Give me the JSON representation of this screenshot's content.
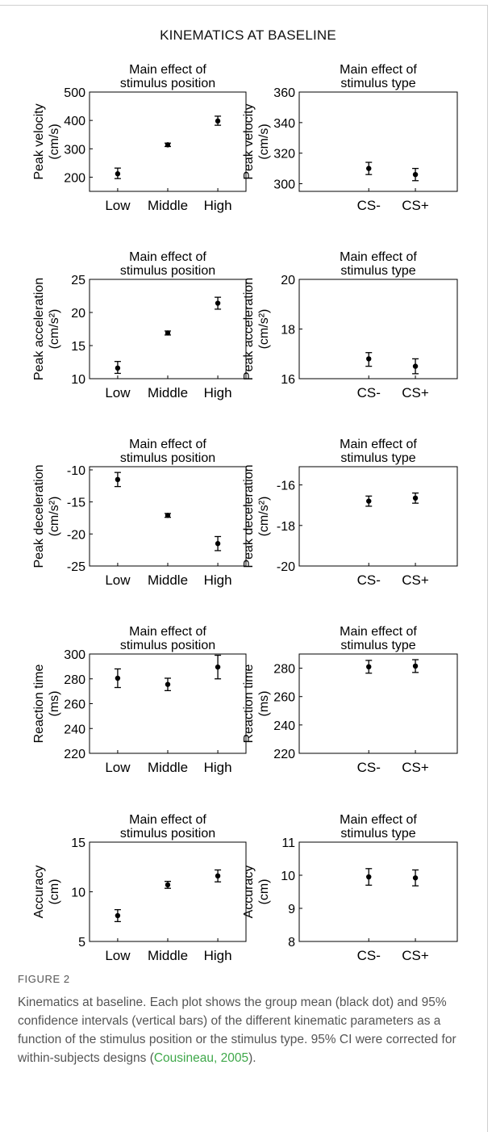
{
  "figure_title": "KINEMATICS AT BASELINE",
  "figure_label": "FIGURE 2",
  "caption": {
    "text_before": "Kinematics at baseline. Each plot shows the group mean (black dot) and 95% confidence intervals (vertical bars) of the different kinematic parameters as a function of the stimulus position or the stimulus type. 95% CI were corrected for within-subjects designs (",
    "citation": "Cousineau, 2005",
    "text_after": ")."
  },
  "colors": {
    "marker": "#000000",
    "caption": "#555555",
    "citation": "#3fa84a",
    "axes": "#000000"
  },
  "chart_data": [
    {
      "type": "scatter",
      "title": [
        "Main effect of",
        "stimulus position"
      ],
      "ylabel": [
        "Peak velocity",
        "(cm/s)"
      ],
      "categories": [
        "Low",
        "Middle",
        "High"
      ],
      "ylim": [
        150,
        500
      ],
      "yticks": [
        "500",
        "400",
        "300",
        "200"
      ],
      "ytick_values": [
        500,
        400,
        300,
        200
      ],
      "values": [
        212,
        314,
        398
      ],
      "ci_low": [
        195,
        308,
        383
      ],
      "ci_high": [
        232,
        320,
        415
      ]
    },
    {
      "type": "scatter",
      "title": [
        "Main effect of",
        "stimulus type"
      ],
      "ylabel": [
        "Peak velocity",
        "(cm/s)"
      ],
      "categories": [
        "CS-",
        "CS+"
      ],
      "ylim": [
        295,
        360
      ],
      "yticks": [
        "360",
        "340",
        "320",
        "300"
      ],
      "ytick_values": [
        360,
        340,
        320,
        300
      ],
      "values": [
        310,
        306
      ],
      "ci_low": [
        306,
        302
      ],
      "ci_high": [
        314,
        310
      ]
    },
    {
      "type": "scatter",
      "title": [
        "Main effect of",
        "stimulus position"
      ],
      "ylabel": [
        "Peak acceleration",
        "(cm/s²)"
      ],
      "categories": [
        "Low",
        "Middle",
        "High"
      ],
      "ylim": [
        10,
        25
      ],
      "yticks": [
        "25",
        "20",
        "15",
        "10"
      ],
      "ytick_values": [
        25,
        20,
        15,
        10
      ],
      "values": [
        11.6,
        16.9,
        21.4
      ],
      "ci_low": [
        10.8,
        16.6,
        20.5
      ],
      "ci_high": [
        12.6,
        17.2,
        22.3
      ]
    },
    {
      "type": "scatter",
      "title": [
        "Main effect of",
        "stimulus type"
      ],
      "ylabel": [
        "Peak acceleration",
        "(cm/s²)"
      ],
      "categories": [
        "CS-",
        "CS+"
      ],
      "ylim": [
        16,
        20
      ],
      "yticks": [
        "20",
        "18",
        "16"
      ],
      "ytick_values": [
        20,
        18,
        16
      ],
      "values": [
        16.8,
        16.5
      ],
      "ci_low": [
        16.5,
        16.2
      ],
      "ci_high": [
        17.05,
        16.8
      ]
    },
    {
      "type": "scatter",
      "title": [
        "Main effect of",
        "stimulus position"
      ],
      "ylabel": [
        "Peak deceleration",
        "(cm/s²)"
      ],
      "categories": [
        "Low",
        "Middle",
        "High"
      ],
      "ylim": [
        -25,
        -9.5
      ],
      "yticks": [
        "-10",
        "-15",
        "-20",
        "-25"
      ],
      "ytick_values": [
        -10,
        -15,
        -20,
        -25
      ],
      "values": [
        -11.5,
        -17.1,
        -21.5
      ],
      "ci_low": [
        -12.6,
        -17.4,
        -22.6
      ],
      "ci_high": [
        -10.4,
        -16.8,
        -20.4
      ]
    },
    {
      "type": "scatter",
      "title": [
        "Main effect of",
        "stimulus type"
      ],
      "ylabel": [
        "Peak deceleration",
        "(cm/s²)"
      ],
      "categories": [
        "CS-",
        "CS+"
      ],
      "ylim": [
        -20,
        -15.1
      ],
      "yticks": [
        "-16",
        "-18",
        "-20"
      ],
      "ytick_values": [
        -16,
        -18,
        -20
      ],
      "values": [
        -16.8,
        -16.65
      ],
      "ci_low": [
        -17.05,
        -16.9
      ],
      "ci_high": [
        -16.55,
        -16.4
      ]
    },
    {
      "type": "scatter",
      "title": [
        "Main effect of",
        "stimulus position"
      ],
      "ylabel": [
        "Reaction time",
        "(ms)"
      ],
      "categories": [
        "Low",
        "Middle",
        "High"
      ],
      "ylim": [
        220,
        300
      ],
      "yticks": [
        "300",
        "280",
        "260",
        "240",
        "220"
      ],
      "ytick_values": [
        300,
        280,
        260,
        240,
        220
      ],
      "values": [
        280.5,
        275.5,
        289.5
      ],
      "ci_low": [
        273,
        270.5,
        280
      ],
      "ci_high": [
        288,
        280.5,
        299
      ]
    },
    {
      "type": "scatter",
      "title": [
        "Main effect of",
        "stimulus type"
      ],
      "ylabel": [
        "Reaction time",
        "(ms)"
      ],
      "categories": [
        "CS-",
        "CS+"
      ],
      "ylim": [
        220,
        290
      ],
      "yticks": [
        "280",
        "260",
        "240",
        "220"
      ],
      "ytick_values": [
        280,
        260,
        240,
        220
      ],
      "values": [
        281,
        281.5
      ],
      "ci_low": [
        276.5,
        277
      ],
      "ci_high": [
        285.5,
        286
      ]
    },
    {
      "type": "scatter",
      "title": [
        "Main effect of",
        "stimulus position"
      ],
      "ylabel": [
        "Accuracy",
        "(cm)"
      ],
      "categories": [
        "Low",
        "Middle",
        "High"
      ],
      "ylim": [
        5,
        15
      ],
      "yticks": [
        "15",
        "10",
        "5"
      ],
      "ytick_values": [
        15,
        10,
        5
      ],
      "values": [
        7.6,
        10.7,
        11.6
      ],
      "ci_low": [
        7.0,
        10.35,
        11.0
      ],
      "ci_high": [
        8.2,
        11.05,
        12.2
      ]
    },
    {
      "type": "scatter",
      "title": [
        "Main effect of",
        "stimulus type"
      ],
      "ylabel": [
        "Accuracy",
        "(cm)"
      ],
      "categories": [
        "CS-",
        "CS+"
      ],
      "ylim": [
        8,
        11
      ],
      "yticks": [
        "11",
        "10",
        "9",
        "8"
      ],
      "ytick_values": [
        11,
        10,
        9,
        8
      ],
      "values": [
        9.95,
        9.92
      ],
      "ci_low": [
        9.7,
        9.68
      ],
      "ci_high": [
        10.2,
        10.16
      ]
    }
  ]
}
